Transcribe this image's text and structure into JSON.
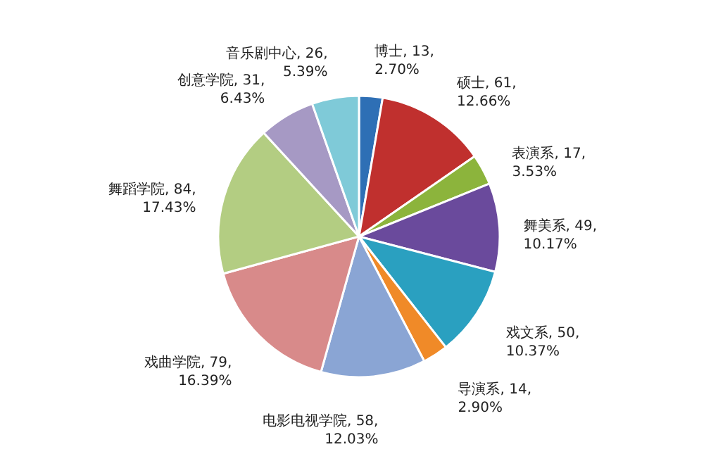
{
  "chart_data": {
    "type": "pie",
    "categories": [
      "博士",
      "硕士",
      "表演系",
      "舞美系",
      "戏文系",
      "导演系",
      "电影电视学院",
      "戏曲学院",
      "舞蹈学院",
      "创意学院",
      "音乐剧中心"
    ],
    "values": [
      13,
      61,
      17,
      49,
      50,
      14,
      58,
      79,
      84,
      31,
      26
    ],
    "value_labels": [
      "13, 2.70%",
      "61, 12.66%",
      "17, 3.53%",
      "49, 10.17%",
      "50, 10.37%",
      "14, 2.90%",
      "58, 12.03%",
      "79, 16.39%",
      "84, 17.43%",
      "31, 6.43%",
      "26, 5.39%"
    ],
    "colors": [
      "#2e6fb5",
      "#c0302e",
      "#8cb43c",
      "#6a4a9c",
      "#2aa0c0",
      "#f08a28",
      "#8aa5d4",
      "#d88a8a",
      "#b3cd82",
      "#a699c4",
      "#7fcad8"
    ]
  }
}
